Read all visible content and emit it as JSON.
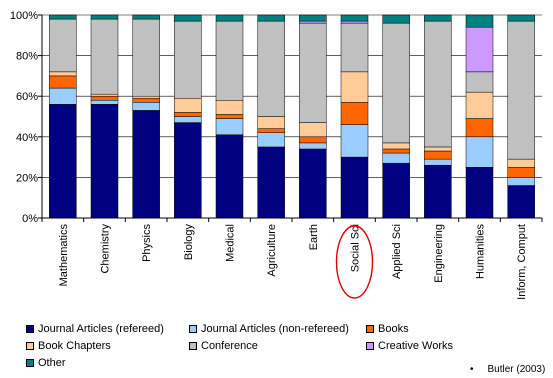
{
  "chart_data": {
    "type": "bar",
    "stacked": true,
    "percent": true,
    "categories": [
      "Mathematics",
      "Chemistry",
      "Physics",
      "Biology",
      "Medical",
      "Agriculture",
      "Earth",
      "Social Sci",
      "Applied Sci",
      "Engineering",
      "Humanities",
      "Inform, Comput"
    ],
    "yticks": [
      "0%",
      "20%",
      "40%",
      "60%",
      "80%",
      "100%"
    ],
    "ylim": [
      0,
      100
    ],
    "highlight": "Social Sci",
    "series": [
      {
        "name": "Journal Articles (refereed)",
        "color": "#000080",
        "values": [
          56,
          56,
          53,
          47,
          41,
          35,
          34,
          30,
          27,
          26,
          25,
          16
        ]
      },
      {
        "name": "Journal Articles (non-refereed)",
        "color": "#99ccff",
        "values": [
          8,
          2,
          4,
          3,
          8,
          7,
          3,
          16,
          5,
          3,
          15,
          4
        ]
      },
      {
        "name": "Books",
        "color": "#ff6600",
        "values": [
          6,
          2,
          2,
          2,
          2,
          2,
          3,
          11,
          2,
          4,
          9,
          5
        ]
      },
      {
        "name": "Book Chapters",
        "color": "#ffcc99",
        "values": [
          2,
          1,
          1,
          7,
          7,
          6,
          7,
          15,
          3,
          2,
          13,
          4
        ]
      },
      {
        "name": "Conference",
        "color": "#c0c0c0",
        "values": [
          26,
          37,
          38,
          38,
          39,
          47,
          49,
          24,
          59,
          62,
          10,
          68
        ]
      },
      {
        "name": "Creative Works",
        "color": "#cc99ff",
        "values": [
          0,
          0,
          0,
          0,
          0,
          0,
          1,
          1,
          0,
          0,
          22,
          0
        ]
      },
      {
        "name": "Other",
        "color": "#008080",
        "values": [
          2,
          2,
          2,
          3,
          3,
          3,
          3,
          3,
          4,
          3,
          6,
          3
        ]
      }
    ]
  },
  "citation": "Butler (2003)",
  "citation_bullet": "•"
}
